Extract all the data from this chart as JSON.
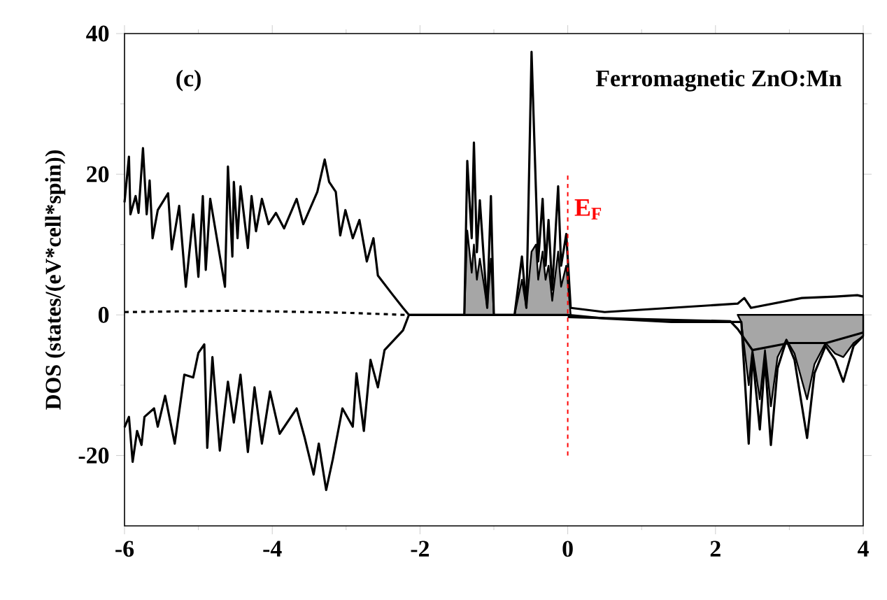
{
  "chart_data": {
    "type": "line",
    "ylabel": "DOS (states/(eV*cell*spin))",
    "xlim": [
      -6,
      4
    ],
    "ylim": [
      -30,
      40
    ],
    "xticks": [
      -6,
      -4,
      -2,
      0,
      2,
      4
    ],
    "yticks": [
      -20,
      0,
      20,
      40
    ],
    "annotations": [
      "(c)",
      "Ferromagnetic ZnO:Mn"
    ],
    "ref_lines": [
      {
        "axis": "x",
        "value": 0,
        "label": "E$_{F}$",
        "color": "#ff0000",
        "line_style": "dashed"
      }
    ],
    "series": [
      {
        "color": "#000000",
        "x": [
          -6,
          -5.94,
          -5.92,
          -5.85,
          -5.81,
          -5.75,
          -5.7,
          -5.66,
          -5.62,
          -5.55,
          -5.41,
          -5.36,
          -5.26,
          -5.17,
          -5.07,
          -5,
          -4.94,
          -4.9,
          -4.84,
          -4.75,
          -4.64,
          -4.6,
          -4.54,
          -4.52,
          -4.47,
          -4.43,
          -4.33,
          -4.28,
          -4.22,
          -4.14,
          -4.05,
          -3.95,
          -3.84,
          -3.67,
          -3.58,
          -3.39,
          -3.29,
          -3.23,
          -3.14,
          -3.08,
          -3.01,
          -2.91,
          -2.82,
          -2.72,
          -2.63,
          -2.57,
          -2.38,
          -2.23,
          -2.15,
          -1.45,
          -1.4,
          -1.36,
          -1.3,
          -1.27,
          -1.23,
          -1.19,
          -1.13,
          -1.09,
          -1.04,
          -1,
          -0.72,
          -0.62,
          -0.56,
          -0.49,
          -0.43,
          -0.4,
          -0.34,
          -0.3,
          -0.26,
          -0.21,
          -0.13,
          -0.09,
          -0.02,
          0.04,
          0.5,
          1.4,
          2.3,
          2.39,
          2.48,
          3.17,
          3.62,
          3.92,
          4
        ],
        "values": [
          16,
          22.5,
          14.3,
          16.9,
          14.5,
          23.7,
          14.3,
          19.1,
          10.9,
          14.9,
          17.3,
          9.3,
          15.5,
          4,
          14.3,
          5.4,
          16.9,
          6.4,
          16.5,
          10.9,
          4,
          21.1,
          8.3,
          18.9,
          10.9,
          18.3,
          9.5,
          16.9,
          11.9,
          16.5,
          12.9,
          14.5,
          12.3,
          16.5,
          12.9,
          17.5,
          22.1,
          18.9,
          17.5,
          11.3,
          14.9,
          10.9,
          13.5,
          7.6,
          10.9,
          5.6,
          3,
          1,
          0,
          0,
          0,
          21.9,
          10.9,
          24.5,
          8.9,
          16.3,
          7,
          1,
          16.9,
          0,
          0,
          8.3,
          1,
          37.4,
          17.5,
          7.6,
          16.5,
          7,
          13.5,
          3.6,
          18.3,
          7,
          11.5,
          1,
          0.4,
          1,
          1.6,
          2.4,
          1,
          2.4,
          2.6,
          2.8,
          2.6
        ]
      },
      {
        "color": "#000000",
        "x": [
          -6,
          -5.94,
          -5.89,
          -5.83,
          -5.77,
          -5.73,
          -5.6,
          -5.55,
          -5.45,
          -5.32,
          -5.19,
          -5.07,
          -5,
          -4.92,
          -4.88,
          -4.81,
          -4.71,
          -4.6,
          -4.52,
          -4.43,
          -4.33,
          -4.24,
          -4.14,
          -4.03,
          -3.9,
          -3.67,
          -3.56,
          -3.44,
          -3.37,
          -3.27,
          -3.18,
          -3.05,
          -2.91,
          -2.86,
          -2.76,
          -2.67,
          -2.57,
          -2.48,
          -2.23,
          -2.15,
          0,
          0.5,
          1.4,
          2.35,
          2.45,
          2.5,
          2.6,
          2.67,
          2.75,
          2.84,
          2.96,
          3.07,
          3.24,
          3.34,
          3.49,
          3.62,
          3.73,
          3.87,
          4
        ],
        "values": [
          -16,
          -14.5,
          -20.9,
          -16.5,
          -18.5,
          -14.5,
          -13.3,
          -15.9,
          -11.5,
          -18.3,
          -8.5,
          -8.9,
          -5.4,
          -4.2,
          -18.9,
          -6,
          -19.3,
          -9.5,
          -15.3,
          -8.5,
          -19.5,
          -10.3,
          -18.3,
          -10.9,
          -16.9,
          -13.3,
          -17.5,
          -22.7,
          -18.3,
          -24.9,
          -20.5,
          -13.3,
          -15.9,
          -8.3,
          -16.5,
          -6.4,
          -10.3,
          -5,
          -2.2,
          0,
          0,
          -0.5,
          -1,
          -1,
          -18.3,
          -5.6,
          -16.3,
          -6.4,
          -18.5,
          -7.6,
          -3.6,
          -6.4,
          -17.5,
          -8.3,
          -4.4,
          -6.4,
          -9.5,
          -4.4,
          -3
        ]
      },
      {
        "color": "#000000",
        "x": [
          0,
          1,
          2.2,
          2.3,
          2.5,
          3,
          3.5,
          4
        ],
        "values": [
          -0.3,
          -0.6,
          -0.9,
          -2,
          -5,
          -4,
          -4,
          -2.5
        ]
      },
      {
        "color": "#000000",
        "line_style": "dashed",
        "x": [
          -6,
          -4.5,
          -3,
          -2.2
        ],
        "values": [
          0.4,
          0.6,
          0.3,
          0
        ]
      },
      {
        "type": "area",
        "color": "#a6a6a6",
        "x": [
          -1.45,
          -1.4,
          -1.36,
          -1.3,
          -1.27,
          -1.23,
          -1.19,
          -1.13,
          -1.09,
          -1.04,
          -1,
          -0.72,
          -0.62,
          -0.56,
          -0.49,
          -0.43,
          -0.4,
          -0.34,
          -0.3,
          -0.26,
          -0.21,
          -0.13,
          -0.09,
          -0.02,
          0.04
        ],
        "values": [
          0,
          0,
          12,
          6,
          10,
          5,
          8,
          4,
          1,
          8,
          0,
          0,
          5,
          1,
          9,
          10,
          5,
          9,
          5,
          7,
          2,
          9,
          4,
          7,
          0
        ]
      },
      {
        "type": "area",
        "color": "#a6a6a6",
        "x": [
          2.3,
          2.35,
          2.45,
          2.5,
          2.6,
          2.67,
          2.75,
          2.84,
          2.96,
          3.07,
          3.24,
          3.34,
          3.49,
          3.62,
          3.73,
          3.87,
          4
        ],
        "values": [
          0,
          -1,
          -10,
          -5,
          -12,
          -5,
          -13,
          -6,
          -3.5,
          -5.5,
          -12,
          -7,
          -4,
          -5.5,
          -6,
          -4,
          -3
        ]
      }
    ]
  }
}
